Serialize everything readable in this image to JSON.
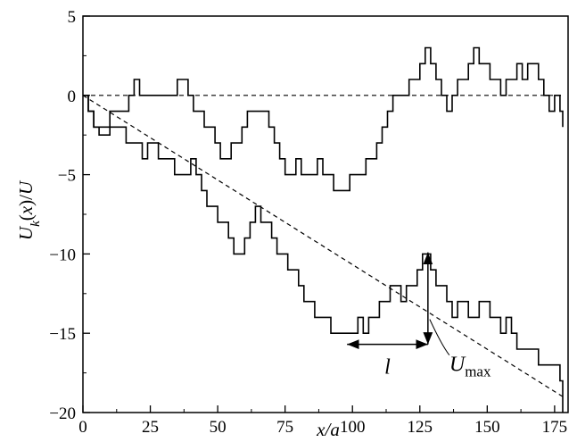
{
  "chart_data": {
    "type": "line",
    "title": "",
    "xlabel": "x/a",
    "ylabel": "U_k(x)/U",
    "xlim": [
      0,
      180
    ],
    "ylim": [
      -20,
      5
    ],
    "grid": false,
    "x_ticks": [
      0,
      25,
      50,
      75,
      100,
      125,
      150,
      175
    ],
    "y_ticks": [
      5,
      0,
      -5,
      -10,
      -15,
      -20
    ],
    "x_tick_labels": [
      "0",
      "25",
      "50",
      "75",
      "100",
      "125",
      "150",
      "175"
    ],
    "y_tick_labels": [
      "5",
      "0",
      "−5",
      "−10",
      "−15",
      "−20"
    ],
    "series": [
      {
        "style": "solid",
        "points": [
          [
            0,
            0
          ],
          [
            2,
            -1
          ],
          [
            4,
            -2
          ],
          [
            6,
            -2.5
          ],
          [
            8,
            -2.5
          ],
          [
            10,
            -1
          ],
          [
            13,
            -1
          ],
          [
            15,
            -1
          ],
          [
            17,
            0
          ],
          [
            19,
            1
          ],
          [
            21,
            0
          ],
          [
            23,
            0
          ],
          [
            25,
            0
          ],
          [
            27,
            0
          ],
          [
            29,
            0
          ],
          [
            31,
            0
          ],
          [
            33,
            0
          ],
          [
            35,
            1
          ],
          [
            37,
            1
          ],
          [
            39,
            0
          ],
          [
            41,
            -1
          ],
          [
            43,
            -1
          ],
          [
            45,
            -2
          ],
          [
            47,
            -2
          ],
          [
            49,
            -3
          ],
          [
            51,
            -4
          ],
          [
            53,
            -4
          ],
          [
            55,
            -3
          ],
          [
            57,
            -3
          ],
          [
            59,
            -2
          ],
          [
            61,
            -1
          ],
          [
            63,
            -1
          ],
          [
            65,
            -1
          ],
          [
            67,
            -1
          ],
          [
            69,
            -2
          ],
          [
            71,
            -3
          ],
          [
            73,
            -4
          ],
          [
            75,
            -5
          ],
          [
            77,
            -5
          ],
          [
            79,
            -4
          ],
          [
            81,
            -5
          ],
          [
            83,
            -5
          ],
          [
            85,
            -5
          ],
          [
            87,
            -4
          ],
          [
            89,
            -5
          ],
          [
            91,
            -5
          ],
          [
            93,
            -6
          ],
          [
            95,
            -6
          ],
          [
            97,
            -6
          ],
          [
            99,
            -5
          ],
          [
            101,
            -5
          ],
          [
            103,
            -5
          ],
          [
            105,
            -4
          ],
          [
            107,
            -4
          ],
          [
            109,
            -3
          ],
          [
            111,
            -2
          ],
          [
            113,
            -1
          ],
          [
            115,
            0
          ],
          [
            117,
            0
          ],
          [
            119,
            0
          ],
          [
            121,
            1
          ],
          [
            123,
            1
          ],
          [
            125,
            2
          ],
          [
            127,
            3
          ],
          [
            129,
            2
          ],
          [
            131,
            1
          ],
          [
            133,
            0
          ],
          [
            135,
            -1
          ],
          [
            137,
            0
          ],
          [
            139,
            1
          ],
          [
            141,
            1
          ],
          [
            143,
            2
          ],
          [
            145,
            3
          ],
          [
            147,
            2
          ],
          [
            149,
            2
          ],
          [
            151,
            1
          ],
          [
            153,
            1
          ],
          [
            155,
            0
          ],
          [
            157,
            1
          ],
          [
            159,
            1
          ],
          [
            161,
            2
          ],
          [
            163,
            1
          ],
          [
            165,
            2
          ],
          [
            167,
            2
          ],
          [
            169,
            1
          ],
          [
            171,
            0
          ],
          [
            173,
            -1
          ],
          [
            175,
            0
          ],
          [
            177,
            -1
          ],
          [
            178,
            -2
          ]
        ]
      },
      {
        "style": "solid",
        "points": [
          [
            0,
            0
          ],
          [
            2,
            -1
          ],
          [
            4,
            -2
          ],
          [
            6,
            -2
          ],
          [
            8,
            -2
          ],
          [
            10,
            -2
          ],
          [
            12,
            -2
          ],
          [
            14,
            -2
          ],
          [
            16,
            -3
          ],
          [
            18,
            -3
          ],
          [
            20,
            -3
          ],
          [
            22,
            -4
          ],
          [
            24,
            -3
          ],
          [
            26,
            -3
          ],
          [
            28,
            -4
          ],
          [
            30,
            -4
          ],
          [
            32,
            -4
          ],
          [
            34,
            -5
          ],
          [
            36,
            -5
          ],
          [
            38,
            -5
          ],
          [
            40,
            -4
          ],
          [
            42,
            -5
          ],
          [
            44,
            -6
          ],
          [
            46,
            -7
          ],
          [
            48,
            -7
          ],
          [
            50,
            -8
          ],
          [
            52,
            -8
          ],
          [
            54,
            -9
          ],
          [
            56,
            -10
          ],
          [
            58,
            -10
          ],
          [
            60,
            -9
          ],
          [
            62,
            -8
          ],
          [
            64,
            -7
          ],
          [
            66,
            -8
          ],
          [
            68,
            -8
          ],
          [
            70,
            -9
          ],
          [
            72,
            -10
          ],
          [
            74,
            -10
          ],
          [
            76,
            -11
          ],
          [
            78,
            -11
          ],
          [
            80,
            -12
          ],
          [
            82,
            -13
          ],
          [
            84,
            -13
          ],
          [
            86,
            -14
          ],
          [
            88,
            -14
          ],
          [
            90,
            -14
          ],
          [
            92,
            -15
          ],
          [
            94,
            -15
          ],
          [
            96,
            -15
          ],
          [
            98,
            -15
          ],
          [
            100,
            -15
          ],
          [
            102,
            -14
          ],
          [
            104,
            -15
          ],
          [
            106,
            -14
          ],
          [
            108,
            -14
          ],
          [
            110,
            -13
          ],
          [
            112,
            -13
          ],
          [
            114,
            -12
          ],
          [
            116,
            -12
          ],
          [
            118,
            -13
          ],
          [
            120,
            -12
          ],
          [
            122,
            -12
          ],
          [
            124,
            -11
          ],
          [
            126,
            -10
          ],
          [
            127,
            -10
          ],
          [
            129,
            -11
          ],
          [
            131,
            -12
          ],
          [
            133,
            -12
          ],
          [
            135,
            -13
          ],
          [
            137,
            -14
          ],
          [
            139,
            -13
          ],
          [
            141,
            -13
          ],
          [
            143,
            -14
          ],
          [
            145,
            -14
          ],
          [
            147,
            -13
          ],
          [
            149,
            -13
          ],
          [
            151,
            -14
          ],
          [
            153,
            -14
          ],
          [
            155,
            -15
          ],
          [
            157,
            -14
          ],
          [
            159,
            -15
          ],
          [
            161,
            -16
          ],
          [
            163,
            -16
          ],
          [
            165,
            -16
          ],
          [
            167,
            -16
          ],
          [
            169,
            -17
          ],
          [
            171,
            -17
          ],
          [
            173,
            -17
          ],
          [
            175,
            -17
          ],
          [
            177,
            -18
          ],
          [
            178,
            -20
          ]
        ]
      },
      {
        "style": "dashed",
        "points": [
          [
            0,
            0
          ],
          [
            178,
            0
          ]
        ]
      },
      {
        "style": "dashed",
        "points": [
          [
            0,
            0
          ],
          [
            178,
            -19
          ]
        ]
      }
    ],
    "annotations": [
      {
        "label": "l",
        "from": [
          98,
          -15.7
        ],
        "to": [
          128,
          -15.7
        ]
      },
      {
        "label": "U",
        "subscript": "max",
        "from": [
          128,
          -9.9
        ],
        "to": [
          128,
          -15.7
        ]
      }
    ]
  }
}
